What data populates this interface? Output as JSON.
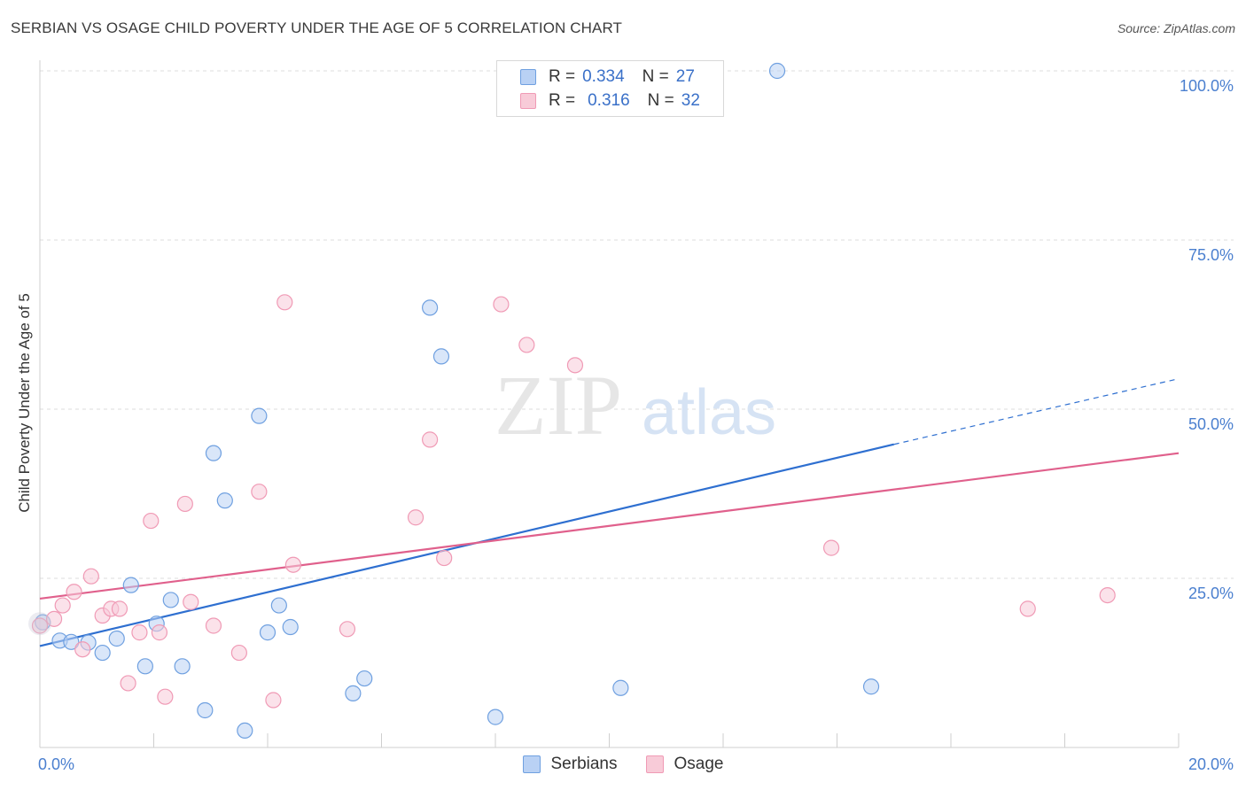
{
  "title": "SERBIAN VS OSAGE CHILD POVERTY UNDER THE AGE OF 5 CORRELATION CHART",
  "source": "Source: ZipAtlas.com",
  "watermark": {
    "zip": "ZIP",
    "atlas": "atlas"
  },
  "legend": {
    "r_label": "R =",
    "n_label": "N =",
    "rows": [
      {
        "r": "0.334",
        "n": "27"
      },
      {
        "r": "0.316",
        "n": "32"
      }
    ]
  },
  "chart_data": {
    "type": "scatter",
    "title": "SERBIAN VS OSAGE CHILD POVERTY UNDER THE AGE OF 5 CORRELATION CHART",
    "xlabel": "",
    "ylabel": "Child Poverty Under the Age of 5",
    "xlim": [
      0,
      20
    ],
    "ylim": [
      0,
      100
    ],
    "x_tick_labels": [
      "0.0%",
      "20.0%"
    ],
    "y_ticks": [
      25,
      50,
      75,
      100
    ],
    "y_tick_labels": [
      "25.0%",
      "50.0%",
      "75.0%",
      "100.0%"
    ],
    "grid": "horizontal dashed",
    "legend_position": "top-center",
    "series": [
      {
        "name": "Serbians",
        "color": "#6fa0e0",
        "fill": "#b9d1f4",
        "line_color": "#2e6fd0",
        "r": 0.334,
        "n": 27,
        "trend": {
          "x0": 0,
          "y0": 15.0,
          "x1": 15,
          "y1": 44.8,
          "dash_to_x": 20,
          "dash_to_y": 54.5
        },
        "points": [
          [
            0.05,
            18.5
          ],
          [
            0.35,
            15.8
          ],
          [
            0.85,
            15.5
          ],
          [
            0.55,
            15.6
          ],
          [
            1.1,
            14.0
          ],
          [
            1.35,
            16.1
          ],
          [
            1.6,
            24.0
          ],
          [
            1.85,
            12.0
          ],
          [
            2.05,
            18.3
          ],
          [
            2.3,
            21.8
          ],
          [
            2.5,
            12.0
          ],
          [
            2.9,
            5.5
          ],
          [
            3.05,
            43.5
          ],
          [
            3.25,
            36.5
          ],
          [
            3.6,
            2.5
          ],
          [
            3.85,
            49.0
          ],
          [
            4.0,
            17.0
          ],
          [
            4.2,
            21.0
          ],
          [
            4.4,
            17.8
          ],
          [
            5.5,
            8.0
          ],
          [
            5.7,
            10.2
          ],
          [
            6.85,
            65.0
          ],
          [
            7.05,
            57.8
          ],
          [
            8.0,
            4.5
          ],
          [
            10.2,
            8.8
          ],
          [
            12.95,
            100.0
          ],
          [
            14.6,
            9.0
          ]
        ]
      },
      {
        "name": "Osage",
        "color": "#f09ab5",
        "fill": "#f8cbd8",
        "line_color": "#e0608c",
        "r": 0.316,
        "n": 32,
        "trend": {
          "x0": 0,
          "y0": 22.0,
          "x1": 20,
          "y1": 43.5
        },
        "points": [
          [
            0.25,
            19.0
          ],
          [
            0.4,
            21.0
          ],
          [
            0.6,
            23.0
          ],
          [
            0.75,
            14.5
          ],
          [
            0.9,
            25.3
          ],
          [
            1.1,
            19.5
          ],
          [
            1.25,
            20.5
          ],
          [
            1.4,
            20.5
          ],
          [
            1.55,
            9.5
          ],
          [
            1.75,
            17.0
          ],
          [
            1.95,
            33.5
          ],
          [
            2.1,
            17.0
          ],
          [
            2.2,
            7.5
          ],
          [
            2.55,
            36.0
          ],
          [
            2.65,
            21.5
          ],
          [
            3.05,
            18.0
          ],
          [
            3.5,
            14.0
          ],
          [
            3.85,
            37.8
          ],
          [
            4.1,
            7.0
          ],
          [
            4.3,
            65.8
          ],
          [
            4.45,
            27.0
          ],
          [
            5.4,
            17.5
          ],
          [
            6.6,
            34.0
          ],
          [
            6.85,
            45.5
          ],
          [
            7.1,
            28.0
          ],
          [
            8.1,
            65.5
          ],
          [
            8.55,
            59.5
          ],
          [
            9.4,
            56.5
          ],
          [
            13.9,
            29.5
          ],
          [
            17.35,
            20.5
          ],
          [
            18.75,
            22.5
          ],
          [
            0.0,
            18.0
          ]
        ]
      }
    ]
  }
}
